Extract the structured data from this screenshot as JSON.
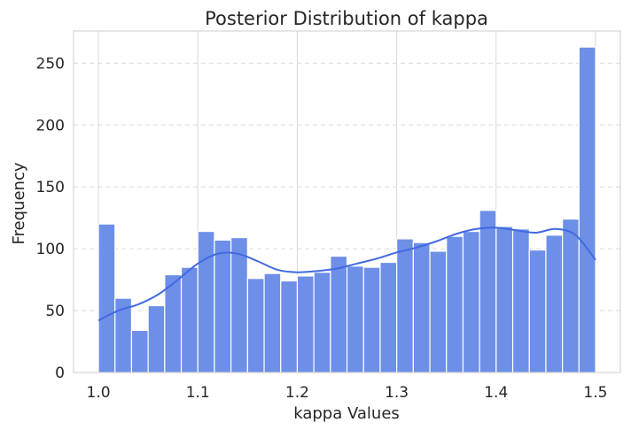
{
  "chart_data": {
    "type": "bar",
    "title": "Posterior Distribution of kappa",
    "xlabel": "kappa Values",
    "ylabel": "Frequency",
    "xlim": [
      0.975,
      1.525
    ],
    "ylim": [
      0,
      276
    ],
    "xticks": [
      1.0,
      1.1,
      1.2,
      1.3,
      1.4,
      1.5
    ],
    "xtick_labels": [
      "1.0",
      "1.1",
      "1.2",
      "1.3",
      "1.4",
      "1.5"
    ],
    "yticks": [
      0,
      50,
      100,
      150,
      200,
      250
    ],
    "ytick_labels": [
      "0",
      "50",
      "100",
      "150",
      "200",
      "250"
    ],
    "grid": true,
    "bin_start": 1.0,
    "bin_width": 0.01667,
    "values": [
      120,
      60,
      34,
      54,
      79,
      85,
      114,
      107,
      109,
      76,
      80,
      74,
      78,
      81,
      94,
      86,
      85,
      89,
      108,
      105,
      98,
      110,
      114,
      131,
      118,
      116,
      99,
      111,
      124,
      263
    ],
    "kde": {
      "x": [
        1.0,
        1.02,
        1.04,
        1.06,
        1.08,
        1.1,
        1.12,
        1.14,
        1.16,
        1.18,
        1.2,
        1.22,
        1.24,
        1.26,
        1.28,
        1.3,
        1.32,
        1.34,
        1.36,
        1.38,
        1.4,
        1.42,
        1.44,
        1.46,
        1.48,
        1.5
      ],
      "y": [
        42,
        50,
        55,
        63,
        75,
        88,
        96,
        96,
        90,
        83,
        81,
        82,
        84,
        88,
        92,
        97,
        101,
        106,
        112,
        116,
        117,
        115,
        113,
        116,
        111,
        91
      ]
    },
    "colors": {
      "bar": "#6d8fe8",
      "bar_edge": "#ffffff",
      "kde": "#4169e1",
      "grid": "#d9d9d9",
      "axis": "#cccccc"
    }
  }
}
